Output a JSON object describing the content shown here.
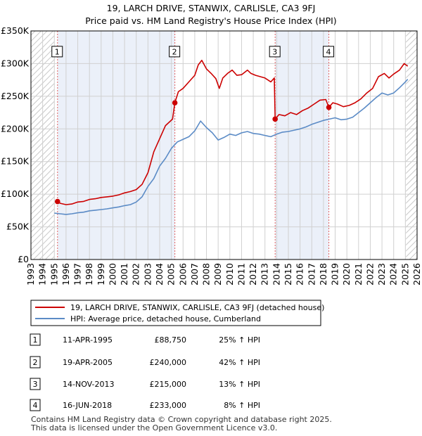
{
  "chart_data": {
    "type": "line",
    "title": "19, LARCH DRIVE, STANWIX, CARLISLE, CA3 9FJ",
    "subtitle": "Price paid vs. HM Land Registry's House Price Index (HPI)",
    "xlim": [
      1993,
      2026
    ],
    "ylim": [
      0,
      350000
    ],
    "x_ticks": [
      1993,
      1994,
      1995,
      1996,
      1997,
      1998,
      1999,
      2000,
      2001,
      2002,
      2003,
      2004,
      2005,
      2006,
      2007,
      2008,
      2009,
      2010,
      2011,
      2012,
      2013,
      2014,
      2015,
      2016,
      2017,
      2018,
      2019,
      2020,
      2021,
      2022,
      2023,
      2024,
      2025,
      2026
    ],
    "y_ticks": [
      {
        "value": 0,
        "label": "£0"
      },
      {
        "value": 50000,
        "label": "£50K"
      },
      {
        "value": 100000,
        "label": "£100K"
      },
      {
        "value": 150000,
        "label": "£150K"
      },
      {
        "value": 200000,
        "label": "£200K"
      },
      {
        "value": 250000,
        "label": "£250K"
      },
      {
        "value": 300000,
        "label": "£300K"
      },
      {
        "value": 350000,
        "label": "£350K"
      }
    ],
    "grid": true,
    "hatched_before": 1995.0,
    "hatched_after": 2025.05,
    "series": [
      {
        "name": "19, LARCH DRIVE, STANWIX, CARLISLE, CA3 9FJ (detached house)",
        "color": "#cc0000",
        "points": [
          [
            1995.27,
            88750
          ],
          [
            1995.5,
            86000
          ],
          [
            1996,
            84000
          ],
          [
            1996.5,
            85000
          ],
          [
            1997,
            88000
          ],
          [
            1997.5,
            89000
          ],
          [
            1998,
            92000
          ],
          [
            1998.5,
            93000
          ],
          [
            1999,
            95000
          ],
          [
            1999.5,
            96000
          ],
          [
            2000,
            97000
          ],
          [
            2000.5,
            99000
          ],
          [
            2001,
            102000
          ],
          [
            2001.5,
            104000
          ],
          [
            2002,
            107000
          ],
          [
            2002.5,
            115000
          ],
          [
            2003,
            133000
          ],
          [
            2003.5,
            165000
          ],
          [
            2004,
            185000
          ],
          [
            2004.5,
            205000
          ],
          [
            2004.8,
            210000
          ],
          [
            2005.1,
            215000
          ],
          [
            2005.3,
            240000
          ],
          [
            2005.6,
            257000
          ],
          [
            2006,
            262000
          ],
          [
            2006.5,
            272000
          ],
          [
            2007,
            282000
          ],
          [
            2007.3,
            298000
          ],
          [
            2007.6,
            305000
          ],
          [
            2008,
            292000
          ],
          [
            2008.4,
            285000
          ],
          [
            2008.8,
            277000
          ],
          [
            2009.1,
            262000
          ],
          [
            2009.4,
            278000
          ],
          [
            2009.8,
            285000
          ],
          [
            2010.2,
            290000
          ],
          [
            2010.6,
            282000
          ],
          [
            2011,
            283000
          ],
          [
            2011.5,
            290000
          ],
          [
            2011.8,
            285000
          ],
          [
            2012.2,
            282000
          ],
          [
            2012.6,
            280000
          ],
          [
            2013,
            278000
          ],
          [
            2013.5,
            272000
          ],
          [
            2013.8,
            278000
          ],
          [
            2013.87,
            215000
          ],
          [
            2014.2,
            222000
          ],
          [
            2014.7,
            220000
          ],
          [
            2015.2,
            225000
          ],
          [
            2015.7,
            222000
          ],
          [
            2016.2,
            228000
          ],
          [
            2016.7,
            232000
          ],
          [
            2017.2,
            238000
          ],
          [
            2017.7,
            244000
          ],
          [
            2018.2,
            245000
          ],
          [
            2018.46,
            233000
          ],
          [
            2018.8,
            240000
          ],
          [
            2019.2,
            238000
          ],
          [
            2019.7,
            234000
          ],
          [
            2020.2,
            236000
          ],
          [
            2020.7,
            240000
          ],
          [
            2021.2,
            246000
          ],
          [
            2021.7,
            255000
          ],
          [
            2022.2,
            262000
          ],
          [
            2022.7,
            280000
          ],
          [
            2023.2,
            285000
          ],
          [
            2023.6,
            278000
          ],
          [
            2024,
            284000
          ],
          [
            2024.5,
            290000
          ],
          [
            2024.9,
            300000
          ],
          [
            2025.2,
            296000
          ]
        ]
      },
      {
        "name": "HPI: Average price, detached house, Cumberland",
        "color": "#5b8bc6",
        "points": [
          [
            1995,
            71000
          ],
          [
            1995.5,
            70000
          ],
          [
            1996,
            69000
          ],
          [
            1996.5,
            70000
          ],
          [
            1997,
            71500
          ],
          [
            1997.5,
            72500
          ],
          [
            1998,
            74500
          ],
          [
            1998.5,
            75500
          ],
          [
            1999,
            76500
          ],
          [
            1999.5,
            77500
          ],
          [
            2000,
            79000
          ],
          [
            2000.5,
            80500
          ],
          [
            2001,
            82500
          ],
          [
            2001.5,
            84000
          ],
          [
            2002,
            88000
          ],
          [
            2002.5,
            96000
          ],
          [
            2003,
            112000
          ],
          [
            2003.5,
            124000
          ],
          [
            2004,
            143000
          ],
          [
            2004.5,
            155000
          ],
          [
            2005,
            170000
          ],
          [
            2005.5,
            180000
          ],
          [
            2006,
            184000
          ],
          [
            2006.5,
            188000
          ],
          [
            2007,
            197000
          ],
          [
            2007.5,
            212000
          ],
          [
            2008,
            202000
          ],
          [
            2008.5,
            194000
          ],
          [
            2009,
            183000
          ],
          [
            2009.5,
            187000
          ],
          [
            2010,
            192000
          ],
          [
            2010.5,
            190000
          ],
          [
            2011,
            194000
          ],
          [
            2011.5,
            196000
          ],
          [
            2012,
            193000
          ],
          [
            2012.5,
            192000
          ],
          [
            2013,
            190000
          ],
          [
            2013.5,
            188000
          ],
          [
            2014,
            192000
          ],
          [
            2014.5,
            195000
          ],
          [
            2015,
            196000
          ],
          [
            2015.5,
            198000
          ],
          [
            2016,
            200000
          ],
          [
            2016.5,
            203000
          ],
          [
            2017,
            207000
          ],
          [
            2017.5,
            210000
          ],
          [
            2018,
            213000
          ],
          [
            2018.5,
            215000
          ],
          [
            2019,
            217000
          ],
          [
            2019.5,
            214000
          ],
          [
            2020,
            215000
          ],
          [
            2020.5,
            218000
          ],
          [
            2021,
            225000
          ],
          [
            2021.5,
            232000
          ],
          [
            2022,
            240000
          ],
          [
            2022.5,
            248000
          ],
          [
            2023,
            255000
          ],
          [
            2023.5,
            252000
          ],
          [
            2024,
            255000
          ],
          [
            2024.5,
            263000
          ],
          [
            2025,
            272000
          ],
          [
            2025.2,
            276000
          ]
        ]
      }
    ],
    "transactions": [
      {
        "num": "1",
        "date": "11-APR-1995",
        "price": "£88,750",
        "hpi": "25% ↑ HPI",
        "x": 1995.27,
        "y": 88750,
        "label_y": 320000
      },
      {
        "num": "2",
        "date": "19-APR-2005",
        "price": "£240,000",
        "hpi": "42% ↑ HPI",
        "x": 2005.3,
        "y": 240000,
        "label_y": 320000
      },
      {
        "num": "3",
        "date": "14-NOV-2013",
        "price": "£215,000",
        "hpi": "13% ↑ HPI",
        "x": 2013.87,
        "y": 215000,
        "label_y": 320000
      },
      {
        "num": "4",
        "date": "16-JUN-2018",
        "price": "£233,000",
        "hpi": "8% ↑ HPI",
        "x": 2018.46,
        "y": 233000,
        "label_y": 320000
      }
    ],
    "marker_color": "#cc0000",
    "vline_color": "#e06060",
    "shade_color": "#dde6f5"
  },
  "footer": {
    "line1": "Contains HM Land Registry data © Crown copyright and database right 2025.",
    "line2": "This data is licensed under the Open Government Licence v3.0."
  }
}
